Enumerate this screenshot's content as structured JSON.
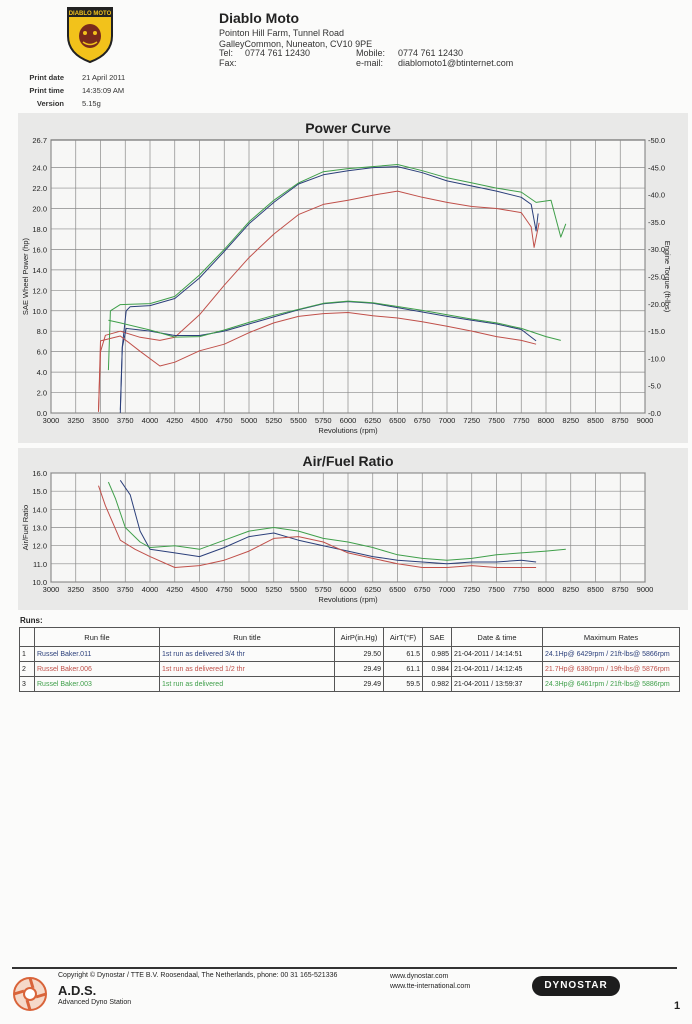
{
  "header": {
    "logo_text": "DIABLO MOTO",
    "company": "Diablo Moto",
    "address_lines": [
      "Pointon Hill Farm, Tunnel Road",
      "GalleyCommon, Nuneaton, CV10 9PE"
    ],
    "tel_label": "Tel:",
    "tel": "0774 761 12430",
    "fax_label": "Fax:",
    "mobile_label": "Mobile:",
    "mobile": "0774 761 12430",
    "email_label": "e-mail:",
    "email": "diablomoto1@btinternet.com"
  },
  "meta": {
    "print_date_label": "Print date",
    "print_date": "21 April 2011",
    "print_time_label": "Print time",
    "print_time": "14:35:09 AM",
    "version_label": "Version",
    "version": "5.15g"
  },
  "colors": {
    "run1": "#2b3f7a",
    "run2": "#c0504a",
    "run3": "#3f9f4a",
    "grid": "#8a8a8a",
    "panel": "#e9e9e8"
  },
  "chart_data": [
    {
      "type": "line",
      "title": "Power Curve",
      "xlabel": "Revolutions (rpm)",
      "ylabel": "SAE Wheel Power (hp)",
      "y2label": "Engine Torque (ft-lbs)",
      "xlim": [
        3000,
        9000
      ],
      "ylim": [
        0,
        26.7
      ],
      "y2lim": [
        0,
        50
      ],
      "x_ticks": [
        3000,
        3250,
        3500,
        3750,
        4000,
        4250,
        4500,
        4750,
        5000,
        5250,
        5500,
        5750,
        6000,
        6250,
        6500,
        6750,
        7000,
        7250,
        7500,
        7750,
        8000,
        8250,
        8500,
        8750,
        9000
      ],
      "y_ticks": [
        0.0,
        2.0,
        4.0,
        6.0,
        8.0,
        10.0,
        12.0,
        14.0,
        16.0,
        18.0,
        20.0,
        22.0,
        24.0
      ],
      "y_top_label": "26.7",
      "y2_ticks": [
        0.0,
        5.0,
        10.0,
        15.0,
        20.0,
        25.0,
        30.0,
        35.0,
        40.0,
        45.0
      ],
      "y2_top_label": "50.0",
      "grid": true,
      "series": [
        {
          "name": "Russel Baker.011 power",
          "color": "#2b3f7a",
          "axis": "left",
          "points": [
            [
              3700,
              0.3
            ],
            [
              3720,
              6.5
            ],
            [
              3760,
              10.0
            ],
            [
              3800,
              10.4
            ],
            [
              4000,
              10.5
            ],
            [
              4250,
              11.2
            ],
            [
              4500,
              13.2
            ],
            [
              4750,
              15.8
            ],
            [
              5000,
              18.5
            ],
            [
              5250,
              20.6
            ],
            [
              5500,
              22.4
            ],
            [
              5750,
              23.3
            ],
            [
              6000,
              23.7
            ],
            [
              6250,
              24.0
            ],
            [
              6500,
              24.1
            ],
            [
              6750,
              23.5
            ],
            [
              7000,
              22.7
            ],
            [
              7250,
              22.2
            ],
            [
              7500,
              21.7
            ],
            [
              7750,
              21.1
            ],
            [
              7850,
              20.4
            ],
            [
              7900,
              17.8
            ],
            [
              7920,
              19.5
            ]
          ]
        },
        {
          "name": "Russel Baker.006 power",
          "color": "#c0504a",
          "axis": "left",
          "points": [
            [
              3480,
              0.2
            ],
            [
              3500,
              6.0
            ],
            [
              3550,
              7.6
            ],
            [
              3700,
              8.0
            ],
            [
              3900,
              7.4
            ],
            [
              4100,
              7.1
            ],
            [
              4250,
              7.4
            ],
            [
              4500,
              9.6
            ],
            [
              4750,
              12.5
            ],
            [
              5000,
              15.2
            ],
            [
              5250,
              17.5
            ],
            [
              5500,
              19.4
            ],
            [
              5750,
              20.4
            ],
            [
              6000,
              20.8
            ],
            [
              6250,
              21.3
            ],
            [
              6500,
              21.7
            ],
            [
              6750,
              21.1
            ],
            [
              7000,
              20.6
            ],
            [
              7250,
              20.2
            ],
            [
              7500,
              20.0
            ],
            [
              7750,
              19.6
            ],
            [
              7850,
              18.2
            ],
            [
              7880,
              16.2
            ],
            [
              7930,
              18.6
            ]
          ]
        },
        {
          "name": "Russel Baker.003 power",
          "color": "#3f9f4a",
          "axis": "left",
          "points": [
            [
              3580,
              4.2
            ],
            [
              3600,
              10.0
            ],
            [
              3700,
              10.6
            ],
            [
              4000,
              10.7
            ],
            [
              4250,
              11.4
            ],
            [
              4500,
              13.5
            ],
            [
              4750,
              16.0
            ],
            [
              5000,
              18.7
            ],
            [
              5250,
              20.8
            ],
            [
              5500,
              22.5
            ],
            [
              5750,
              23.6
            ],
            [
              6000,
              23.9
            ],
            [
              6250,
              24.1
            ],
            [
              6500,
              24.3
            ],
            [
              6750,
              23.7
            ],
            [
              7000,
              23.0
            ],
            [
              7250,
              22.5
            ],
            [
              7500,
              22.0
            ],
            [
              7750,
              21.6
            ],
            [
              7900,
              20.6
            ],
            [
              8050,
              20.8
            ],
            [
              8150,
              17.2
            ],
            [
              8200,
              18.5
            ]
          ]
        },
        {
          "name": "Russel Baker.011 torque",
          "color": "#2b3f7a",
          "axis": "right",
          "points": [
            [
              3700,
              0.0
            ],
            [
              3720,
              12.0
            ],
            [
              3760,
              15.5
            ],
            [
              4000,
              15.0
            ],
            [
              4250,
              14.2
            ],
            [
              4500,
              14.2
            ],
            [
              4750,
              15.0
            ],
            [
              5000,
              16.3
            ],
            [
              5250,
              17.6
            ],
            [
              5500,
              18.9
            ],
            [
              5750,
              20.0
            ],
            [
              6000,
              20.4
            ],
            [
              6250,
              20.1
            ],
            [
              6500,
              19.3
            ],
            [
              6750,
              18.5
            ],
            [
              7000,
              17.7
            ],
            [
              7250,
              17.0
            ],
            [
              7500,
              16.3
            ],
            [
              7750,
              15.3
            ],
            [
              7900,
              13.2
            ]
          ]
        },
        {
          "name": "Russel Baker.006 torque",
          "color": "#c0504a",
          "axis": "right",
          "points": [
            [
              3480,
              0.2
            ],
            [
              3500,
              13.2
            ],
            [
              3700,
              14.1
            ],
            [
              3900,
              11.3
            ],
            [
              4100,
              8.6
            ],
            [
              4250,
              9.3
            ],
            [
              4500,
              11.4
            ],
            [
              4750,
              12.6
            ],
            [
              5000,
              14.7
            ],
            [
              5250,
              16.5
            ],
            [
              5500,
              17.7
            ],
            [
              5750,
              18.2
            ],
            [
              6000,
              18.4
            ],
            [
              6250,
              17.8
            ],
            [
              6500,
              17.4
            ],
            [
              6750,
              16.7
            ],
            [
              7000,
              15.9
            ],
            [
              7250,
              15.0
            ],
            [
              7500,
              14.0
            ],
            [
              7750,
              13.3
            ],
            [
              7900,
              12.6
            ]
          ]
        },
        {
          "name": "Russel Baker.003 torque",
          "color": "#3f9f4a",
          "axis": "right",
          "points": [
            [
              3580,
              17.0
            ],
            [
              3700,
              16.5
            ],
            [
              4000,
              15.2
            ],
            [
              4250,
              13.9
            ],
            [
              4500,
              14.0
            ],
            [
              4750,
              15.2
            ],
            [
              5000,
              16.6
            ],
            [
              5250,
              17.9
            ],
            [
              5500,
              19.0
            ],
            [
              5750,
              20.1
            ],
            [
              6000,
              20.5
            ],
            [
              6250,
              20.2
            ],
            [
              6500,
              19.5
            ],
            [
              6750,
              18.8
            ],
            [
              7000,
              18.0
            ],
            [
              7250,
              17.2
            ],
            [
              7500,
              16.5
            ],
            [
              7750,
              15.5
            ],
            [
              8000,
              14.0
            ],
            [
              8150,
              13.3
            ]
          ]
        }
      ]
    },
    {
      "type": "line",
      "title": "Air/Fuel Ratio",
      "xlabel": "Revolutions (rpm)",
      "ylabel": "Air/Fuel Ratio",
      "xlim": [
        3000,
        9000
      ],
      "ylim": [
        10.0,
        16.0
      ],
      "x_ticks": [
        3000,
        3250,
        3500,
        3750,
        4000,
        4250,
        4500,
        4750,
        5000,
        5250,
        5500,
        5750,
        6000,
        6250,
        6500,
        6750,
        7000,
        7250,
        7500,
        7750,
        8000,
        8250,
        8500,
        8750,
        9000
      ],
      "y_ticks": [
        10.0,
        11.0,
        12.0,
        13.0,
        14.0,
        15.0,
        16.0
      ],
      "grid": true,
      "series": [
        {
          "name": "Russel Baker.011 AFR",
          "color": "#2b3f7a",
          "points": [
            [
              3700,
              15.6
            ],
            [
              3800,
              14.8
            ],
            [
              3900,
              12.8
            ],
            [
              4000,
              11.8
            ],
            [
              4250,
              11.6
            ],
            [
              4500,
              11.4
            ],
            [
              4750,
              11.9
            ],
            [
              5000,
              12.5
            ],
            [
              5250,
              12.7
            ],
            [
              5500,
              12.3
            ],
            [
              5750,
              12.0
            ],
            [
              6000,
              11.7
            ],
            [
              6250,
              11.4
            ],
            [
              6500,
              11.2
            ],
            [
              6750,
              11.1
            ],
            [
              7000,
              11.0
            ],
            [
              7250,
              11.1
            ],
            [
              7500,
              11.1
            ],
            [
              7750,
              11.2
            ],
            [
              7900,
              11.1
            ]
          ]
        },
        {
          "name": "Russel Baker.006 AFR",
          "color": "#c0504a",
          "points": [
            [
              3480,
              15.3
            ],
            [
              3550,
              14.2
            ],
            [
              3700,
              12.3
            ],
            [
              3850,
              11.8
            ],
            [
              4000,
              11.4
            ],
            [
              4250,
              10.8
            ],
            [
              4500,
              10.9
            ],
            [
              4750,
              11.2
            ],
            [
              5000,
              11.7
            ],
            [
              5250,
              12.4
            ],
            [
              5500,
              12.5
            ],
            [
              5750,
              12.2
            ],
            [
              6000,
              11.6
            ],
            [
              6250,
              11.3
            ],
            [
              6500,
              11.0
            ],
            [
              6750,
              10.8
            ],
            [
              7000,
              10.8
            ],
            [
              7250,
              10.9
            ],
            [
              7500,
              10.8
            ],
            [
              7750,
              10.8
            ],
            [
              7900,
              10.8
            ]
          ]
        },
        {
          "name": "Russel Baker.003 AFR",
          "color": "#3f9f4a",
          "points": [
            [
              3580,
              15.5
            ],
            [
              3650,
              14.6
            ],
            [
              3750,
              13.0
            ],
            [
              3900,
              12.2
            ],
            [
              4000,
              11.9
            ],
            [
              4250,
              12.0
            ],
            [
              4500,
              11.8
            ],
            [
              4750,
              12.3
            ],
            [
              5000,
              12.8
            ],
            [
              5250,
              13.0
            ],
            [
              5500,
              12.8
            ],
            [
              5750,
              12.4
            ],
            [
              6000,
              12.2
            ],
            [
              6250,
              11.9
            ],
            [
              6500,
              11.5
            ],
            [
              6750,
              11.3
            ],
            [
              7000,
              11.2
            ],
            [
              7250,
              11.3
            ],
            [
              7500,
              11.5
            ],
            [
              7750,
              11.6
            ],
            [
              8000,
              11.7
            ],
            [
              8200,
              11.8
            ]
          ]
        }
      ]
    }
  ],
  "runs": {
    "heading": "Runs:",
    "columns": [
      "Run file",
      "Run title",
      "AirP(in.Hg)",
      "AirT(°F)",
      "SAE",
      "Date & time",
      "Maximum Rates"
    ],
    "rows": [
      {
        "n": "1",
        "file": "Russel Baker.011",
        "title": "1st run as delivered 3/4 thr",
        "airp": "29.50",
        "airt": "61.5",
        "sae": "0.985",
        "datetime": "21-04-2011 / 14:14:51",
        "max": "24.1Hp@ 6429rpm / 21ft-lbs@ 5866rpm",
        "color": "#2b3f7a"
      },
      {
        "n": "2",
        "file": "Russel Baker.006",
        "title": "1st run as delivered 1/2 thr",
        "airp": "29.49",
        "airt": "61.1",
        "sae": "0.984",
        "datetime": "21-04-2011 / 14:12:45",
        "max": "21.7Hp@ 6380rpm / 19ft-lbs@ 5876rpm",
        "color": "#c0504a"
      },
      {
        "n": "3",
        "file": "Russel Baker.003",
        "title": "1st run as delivered",
        "airp": "29.49",
        "airt": "59.5",
        "sae": "0.982",
        "datetime": "21-04-2011 / 13:59:37",
        "max": "24.3Hp@ 6461rpm / 21ft-lbs@ 5886rpm",
        "color": "#3f9f4a"
      }
    ]
  },
  "footer": {
    "copyright": "Copyright ©  Dynostar / TTE B.V. Roosendaal, The Netherlands, phone: 00 31 165-521336",
    "brand": "A.D.S.",
    "brand_sub": "Advanced Dyno Station",
    "web1": "www.dynostar.com",
    "web2": "www.tte-international.com",
    "badge": "DYNOSTAR",
    "page": "1"
  }
}
